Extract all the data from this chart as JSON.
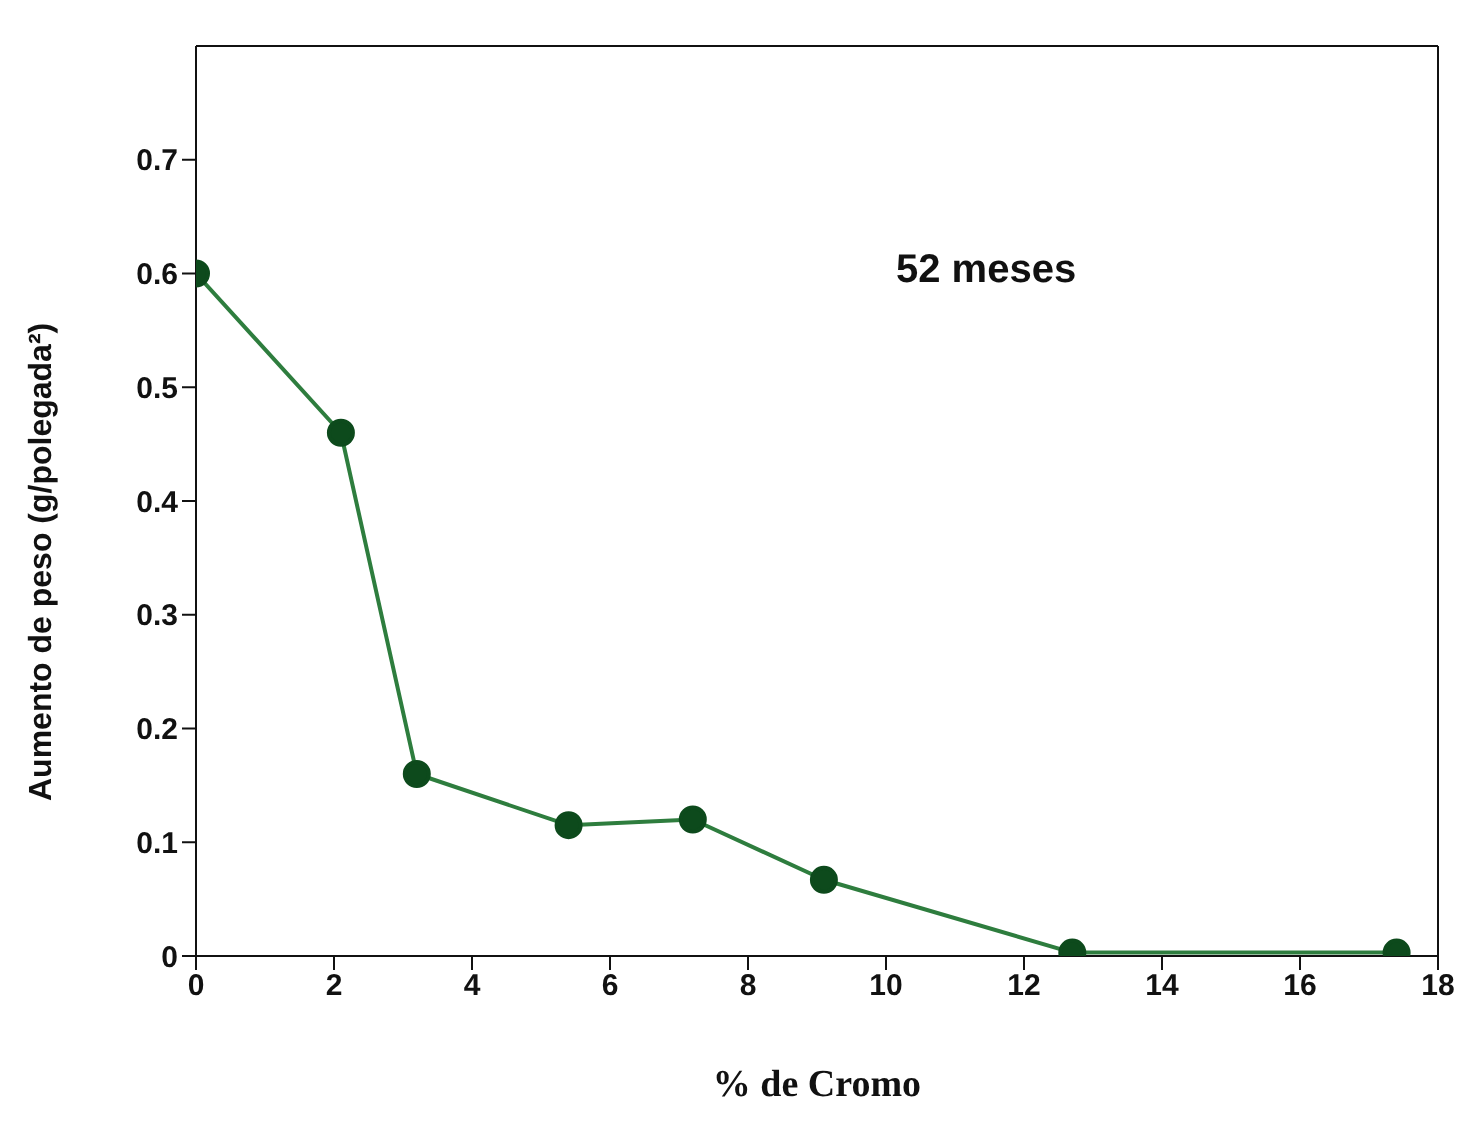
{
  "chart_data": {
    "type": "line",
    "xlabel": "% de Cromo",
    "ylabel": "Aumento de peso (g/polegada²)",
    "annotations": [
      "52 meses"
    ],
    "x": [
      0,
      2.1,
      3.2,
      5.4,
      7.2,
      9.1,
      12.7,
      17.4
    ],
    "series": [
      {
        "color": "#2e7d3e",
        "values": [
          0.6,
          0.46,
          0.16,
          0.115,
          0.12,
          0.067,
          0.003,
          0.003
        ]
      }
    ],
    "xlim": [
      0,
      18
    ],
    "xticks": [
      0,
      2,
      4,
      6,
      8,
      10,
      12,
      14,
      16,
      18
    ],
    "ylim": [
      0,
      0.8
    ],
    "yticks": [
      0,
      0.1,
      0.2,
      0.3,
      0.4,
      0.5,
      0.6,
      0.7
    ],
    "marker": "circle",
    "line_style": "solid",
    "grid": false,
    "legend": false
  }
}
